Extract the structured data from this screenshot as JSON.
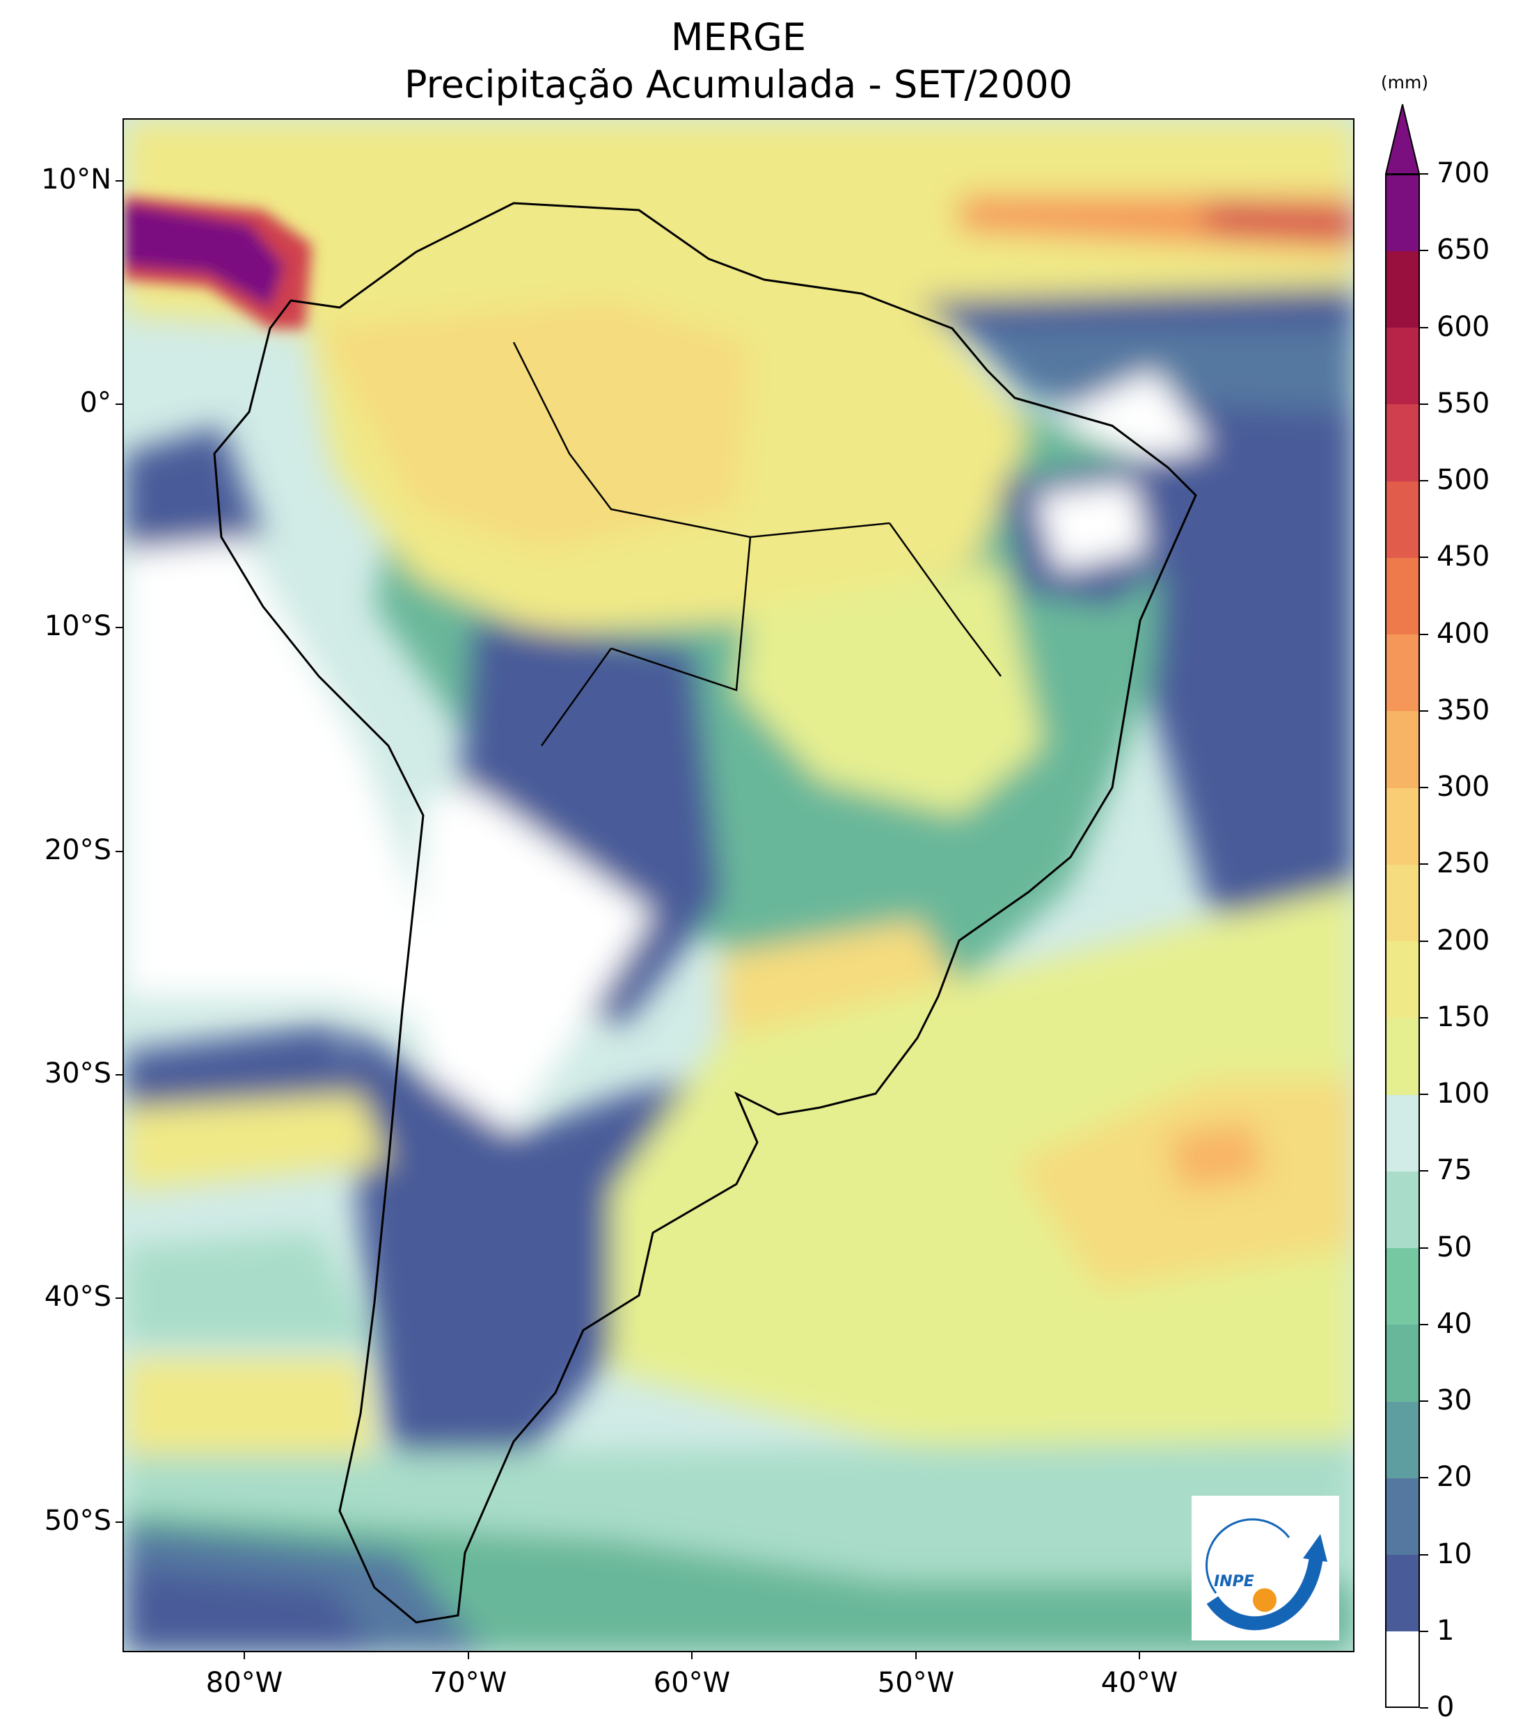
{
  "title": {
    "line1": "MERGE",
    "line2": "Precipitação Acumulada - SET/2000"
  },
  "map": {
    "lat_labels": [
      "10°N",
      "0°",
      "10°S",
      "20°S",
      "30°S",
      "40°S",
      "50°S"
    ],
    "lon_labels": [
      "80°W",
      "70°W",
      "60°W",
      "50°W",
      "40°W"
    ],
    "extent_lon": [
      -85,
      -30
    ],
    "extent_lat": [
      -56,
      13
    ],
    "dominant_regions": [
      {
        "area": "Pacific coast off Colombia/Panama",
        "class": "650-700+"
      },
      {
        "area": "Northern Colombia / Venezuela",
        "class": "150-300"
      },
      {
        "area": "Amazon basin",
        "class": "100-250"
      },
      {
        "area": "Equatorial Atlantic",
        "class": "1-30"
      },
      {
        "area": "Northern Atlantic ITCZ band",
        "class": "200-550"
      },
      {
        "area": "Pacific off Peru / Chile",
        "class": "0-1"
      },
      {
        "area": "Altiplano / Argentine Chaco",
        "class": "0-10"
      },
      {
        "area": "Southern Brazil / Uruguay",
        "class": "100-300"
      },
      {
        "area": "South Atlantic storm track",
        "class": "100-250"
      },
      {
        "area": "Southern ocean",
        "class": "10-50"
      }
    ]
  },
  "colorbar": {
    "unit": "(mm)",
    "labels": [
      "0",
      "1",
      "10",
      "20",
      "30",
      "40",
      "50",
      "75",
      "100",
      "150",
      "200",
      "250",
      "300",
      "350",
      "400",
      "450",
      "500",
      "550",
      "600",
      "650",
      "700"
    ],
    "colors": [
      "#ffffff",
      "#4a5b99",
      "#5478a0",
      "#5f9ea0",
      "#69b79a",
      "#76c8a3",
      "#a9ddc9",
      "#d1ebe6",
      "#e6ef90",
      "#f0e987",
      "#f5dc7e",
      "#f9cd74",
      "#f8b465",
      "#f59758",
      "#ee7a4c",
      "#e15c4b",
      "#cf3f4d",
      "#b82447",
      "#99103f",
      "#7b0f80"
    ],
    "extend_color": "#7b0f80"
  },
  "logo": {
    "text": "INPE",
    "colors": {
      "arc": "#1565b7",
      "sun": "#f39a1e"
    }
  }
}
